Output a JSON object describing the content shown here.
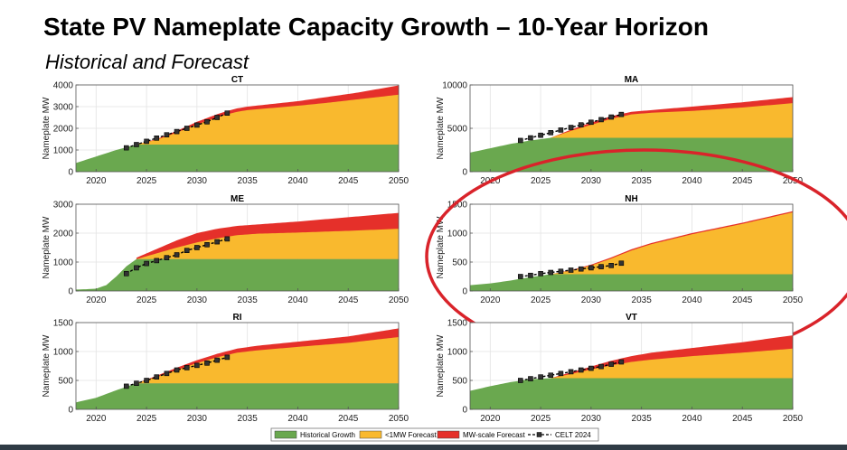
{
  "page": {
    "title": "State PV Nameplate Capacity Growth – 10-Year Horizon",
    "subtitle": "Historical and Forecast"
  },
  "colors": {
    "historical": "#6aa84f",
    "under1mw": "#f9b92e",
    "mwscale": "#e5302a",
    "celt": "#000000",
    "highlight": "#d9232a"
  },
  "legend": {
    "items": [
      {
        "label": "Historical Growth",
        "type": "fill",
        "color": "#6aa84f"
      },
      {
        "label": "<1MW Forecast",
        "type": "fill",
        "color": "#f9b92e"
      },
      {
        "label": "MW-scale Forecast",
        "type": "fill",
        "color": "#e5302a"
      },
      {
        "label": "CELT 2024",
        "type": "line",
        "color": "#000000"
      }
    ]
  },
  "chart_data": [
    {
      "type": "area",
      "title": "CT",
      "ylabel": "Nameplate MW",
      "xlim": [
        2018,
        2050
      ],
      "ylim": [
        0,
        4000
      ],
      "xticks": [
        2020,
        2025,
        2030,
        2035,
        2040,
        2045,
        2050
      ],
      "yticks": [
        0,
        1000,
        2000,
        3000,
        4000
      ],
      "historical": {
        "x": [
          2018,
          2020,
          2022,
          2024,
          2050
        ],
        "y": [
          400,
          700,
          1000,
          1250,
          1250
        ]
      },
      "under1mw_top": {
        "x": [
          2024,
          2026,
          2028,
          2030,
          2032,
          2033,
          2034,
          2035,
          2037,
          2040,
          2043,
          2046,
          2050
        ],
        "y": [
          1250,
          1470,
          1800,
          2180,
          2500,
          2650,
          2760,
          2840,
          2920,
          3040,
          3180,
          3340,
          3550
        ]
      },
      "mwscale_top": {
        "x": [
          2024,
          2026,
          2028,
          2030,
          2032,
          2033,
          2034,
          2035,
          2037,
          2040,
          2043,
          2046,
          2050
        ],
        "y": [
          1250,
          1500,
          1880,
          2300,
          2650,
          2800,
          2920,
          3000,
          3100,
          3250,
          3450,
          3650,
          3980
        ]
      },
      "celt": {
        "x": [
          2023,
          2024,
          2025,
          2026,
          2027,
          2028,
          2029,
          2030,
          2031,
          2032,
          2033
        ],
        "y": [
          1100,
          1250,
          1400,
          1550,
          1700,
          1850,
          2000,
          2150,
          2300,
          2500,
          2700
        ]
      },
      "highlighted": false
    },
    {
      "type": "area",
      "title": "MA",
      "ylabel": "Nameplate MW",
      "xlim": [
        2018,
        2050
      ],
      "ylim": [
        0,
        10000
      ],
      "xticks": [
        2020,
        2025,
        2030,
        2035,
        2040,
        2045,
        2050
      ],
      "yticks": [
        0,
        5000,
        10000
      ],
      "historical": {
        "x": [
          2018,
          2020,
          2022,
          2024,
          2026,
          2050
        ],
        "y": [
          2200,
          2700,
          3200,
          3600,
          3900,
          3900
        ]
      },
      "under1mw_top": {
        "x": [
          2026,
          2028,
          2030,
          2032,
          2034,
          2036,
          2040,
          2045,
          2050
        ],
        "y": [
          3900,
          4700,
          5400,
          6100,
          6600,
          6800,
          7000,
          7400,
          7900
        ]
      },
      "mwscale_top": {
        "x": [
          2026,
          2028,
          2030,
          2032,
          2034,
          2036,
          2040,
          2045,
          2050
        ],
        "y": [
          3900,
          4850,
          5650,
          6400,
          6900,
          7100,
          7500,
          8000,
          8600
        ]
      },
      "celt": {
        "x": [
          2023,
          2024,
          2025,
          2026,
          2027,
          2028,
          2029,
          2030,
          2031,
          2032,
          2033
        ],
        "y": [
          3600,
          3900,
          4200,
          4500,
          4800,
          5100,
          5400,
          5700,
          6000,
          6300,
          6600
        ]
      },
      "highlighted": false
    },
    {
      "type": "area",
      "title": "ME",
      "ylabel": "Nameplate MW",
      "xlim": [
        2018,
        2050
      ],
      "ylim": [
        0,
        3000
      ],
      "xticks": [
        2020,
        2025,
        2030,
        2035,
        2040,
        2045,
        2050
      ],
      "yticks": [
        0,
        1000,
        2000,
        3000
      ],
      "historical": {
        "x": [
          2018,
          2019,
          2020,
          2021,
          2022,
          2023,
          2024,
          2050
        ],
        "y": [
          50,
          60,
          80,
          200,
          500,
          850,
          1100,
          1100
        ]
      },
      "under1mw_top": {
        "x": [
          2024,
          2026,
          2028,
          2030,
          2032,
          2034,
          2036,
          2040,
          2045,
          2050
        ],
        "y": [
          1100,
          1300,
          1500,
          1680,
          1820,
          1930,
          1980,
          2020,
          2080,
          2150
        ]
      },
      "mwscale_top": {
        "x": [
          2024,
          2026,
          2028,
          2030,
          2032,
          2034,
          2036,
          2040,
          2045,
          2050
        ],
        "y": [
          1150,
          1450,
          1750,
          2000,
          2150,
          2250,
          2300,
          2400,
          2550,
          2700
        ]
      },
      "celt": {
        "x": [
          2023,
          2024,
          2025,
          2026,
          2027,
          2028,
          2029,
          2030,
          2031,
          2032,
          2033
        ],
        "y": [
          600,
          800,
          950,
          1050,
          1150,
          1250,
          1400,
          1500,
          1600,
          1700,
          1800
        ]
      },
      "highlighted": false
    },
    {
      "type": "area",
      "title": "NH",
      "ylabel": "Nameplate MW",
      "xlim": [
        2018,
        2050
      ],
      "ylim": [
        0,
        1500
      ],
      "xticks": [
        2020,
        2025,
        2030,
        2035,
        2040,
        2045,
        2050
      ],
      "yticks": [
        0,
        500,
        1000,
        1500
      ],
      "historical": {
        "x": [
          2018,
          2020,
          2022,
          2024,
          2026,
          2050
        ],
        "y": [
          100,
          130,
          180,
          240,
          290,
          290
        ]
      },
      "under1mw_top": {
        "x": [
          2026,
          2028,
          2030,
          2032,
          2034,
          2036,
          2040,
          2045,
          2050
        ],
        "y": [
          290,
          350,
          440,
          560,
          700,
          810,
          980,
          1160,
          1360
        ]
      },
      "mwscale_top": {
        "x": [
          2026,
          2028,
          2030,
          2032,
          2034,
          2036,
          2040,
          2045,
          2050
        ],
        "y": [
          290,
          360,
          455,
          580,
          720,
          830,
          1000,
          1180,
          1380
        ]
      },
      "celt": {
        "x": [
          2023,
          2024,
          2025,
          2026,
          2027,
          2028,
          2029,
          2030,
          2031,
          2032,
          2033
        ],
        "y": [
          250,
          270,
          300,
          320,
          340,
          360,
          380,
          400,
          420,
          440,
          480
        ]
      },
      "highlighted": true
    },
    {
      "type": "area",
      "title": "RI",
      "ylabel": "Nameplate MW",
      "xlim": [
        2018,
        2050
      ],
      "ylim": [
        0,
        1500
      ],
      "xticks": [
        2020,
        2025,
        2030,
        2035,
        2040,
        2045,
        2050
      ],
      "yticks": [
        0,
        500,
        1000,
        1500
      ],
      "historical": {
        "x": [
          2018,
          2020,
          2022,
          2024,
          2050
        ],
        "y": [
          120,
          200,
          330,
          450,
          450
        ]
      },
      "under1mw_top": {
        "x": [
          2024,
          2026,
          2028,
          2030,
          2032,
          2034,
          2036,
          2040,
          2045,
          2050
        ],
        "y": [
          450,
          560,
          680,
          800,
          900,
          980,
          1020,
          1080,
          1150,
          1250
        ]
      },
      "mwscale_top": {
        "x": [
          2024,
          2026,
          2028,
          2030,
          2032,
          2034,
          2036,
          2040,
          2045,
          2050
        ],
        "y": [
          450,
          580,
          720,
          850,
          960,
          1050,
          1100,
          1170,
          1260,
          1400
        ]
      },
      "celt": {
        "x": [
          2023,
          2024,
          2025,
          2026,
          2027,
          2028,
          2029,
          2030,
          2031,
          2032,
          2033
        ],
        "y": [
          400,
          450,
          500,
          560,
          620,
          680,
          720,
          760,
          800,
          850,
          900
        ]
      },
      "highlighted": false
    },
    {
      "type": "area",
      "title": "VT",
      "ylabel": "Nameplate MW",
      "xlim": [
        2018,
        2050
      ],
      "ylim": [
        0,
        1500
      ],
      "xticks": [
        2020,
        2025,
        2030,
        2035,
        2040,
        2045,
        2050
      ],
      "yticks": [
        0,
        500,
        1000,
        1500
      ],
      "historical": {
        "x": [
          2018,
          2020,
          2022,
          2024,
          2026,
          2050
        ],
        "y": [
          320,
          400,
          470,
          520,
          540,
          540
        ]
      },
      "under1mw_top": {
        "x": [
          2026,
          2028,
          2030,
          2032,
          2034,
          2036,
          2040,
          2045,
          2050
        ],
        "y": [
          540,
          610,
          690,
          760,
          820,
          860,
          920,
          980,
          1050
        ]
      },
      "mwscale_top": {
        "x": [
          2026,
          2028,
          2030,
          2032,
          2034,
          2036,
          2040,
          2045,
          2050
        ],
        "y": [
          540,
          640,
          740,
          840,
          920,
          980,
          1060,
          1160,
          1280
        ]
      },
      "celt": {
        "x": [
          2023,
          2024,
          2025,
          2026,
          2027,
          2028,
          2029,
          2030,
          2031,
          2032,
          2033
        ],
        "y": [
          500,
          530,
          560,
          590,
          620,
          650,
          680,
          710,
          740,
          780,
          820
        ]
      },
      "highlighted": false
    }
  ]
}
